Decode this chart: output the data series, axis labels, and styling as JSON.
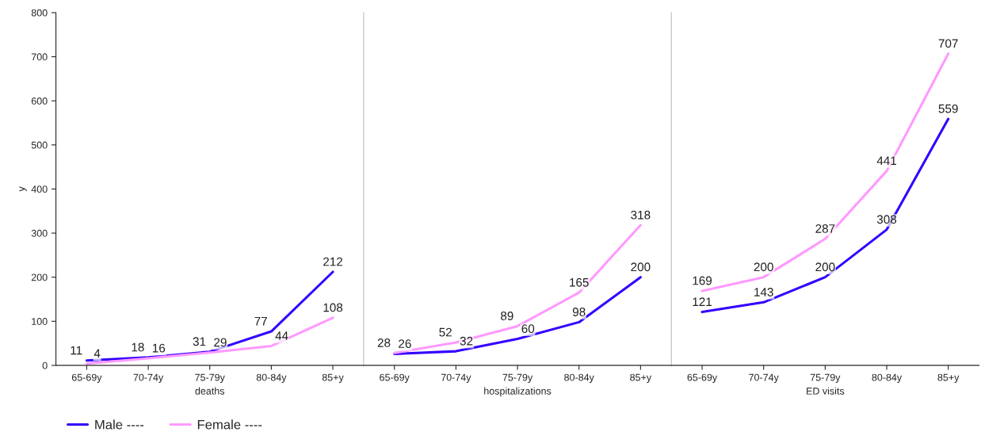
{
  "chart_data": [
    {
      "type": "line",
      "xlabel": "deaths",
      "ylabel": "y",
      "categories": [
        "65-69y",
        "70-74y",
        "75-79y",
        "80-84y",
        "85+y"
      ],
      "ylim": [
        0,
        800
      ],
      "yticks": [
        0,
        100,
        200,
        300,
        400,
        500,
        600,
        700,
        800
      ],
      "data_labels": true,
      "grid": false,
      "legend": "bottom left",
      "series": [
        {
          "name": "Male ----",
          "color": "#3300ff",
          "values": [
            11,
            18,
            31,
            77,
            212
          ]
        },
        {
          "name": "Female ----",
          "color": "#ff99ff",
          "values": [
            4,
            16,
            29,
            44,
            108
          ]
        }
      ]
    },
    {
      "type": "line",
      "xlabel": "hospitalizations",
      "categories": [
        "65-69y",
        "70-74y",
        "75-79y",
        "80-84y",
        "85+y"
      ],
      "ylim": [
        0,
        800
      ],
      "yticks": [
        0,
        100,
        200,
        300,
        400,
        500,
        600,
        700,
        800
      ],
      "tick_labels": "x",
      "data_labels": true,
      "grid": false,
      "series": [
        {
          "color": "#3300ff",
          "values": [
            26,
            32,
            60,
            98,
            200
          ]
        },
        {
          "color": "#ff99ff",
          "values": [
            28,
            52,
            89,
            165,
            318
          ]
        }
      ]
    },
    {
      "type": "line",
      "xlabel": "ED visits",
      "categories": [
        "65-69y",
        "70-74y",
        "75-79y",
        "80-84y",
        "85+y"
      ],
      "ylim": [
        0,
        800
      ],
      "yticks": [
        0,
        100,
        200,
        300,
        400,
        500,
        600,
        700,
        800
      ],
      "tick_labels": "x",
      "data_labels": true,
      "grid": false,
      "series": [
        {
          "color": "#3300ff",
          "values": [
            121,
            143,
            200,
            308,
            559
          ]
        },
        {
          "color": "#ff99ff",
          "values": [
            169,
            200,
            287,
            441,
            707
          ]
        }
      ]
    }
  ]
}
